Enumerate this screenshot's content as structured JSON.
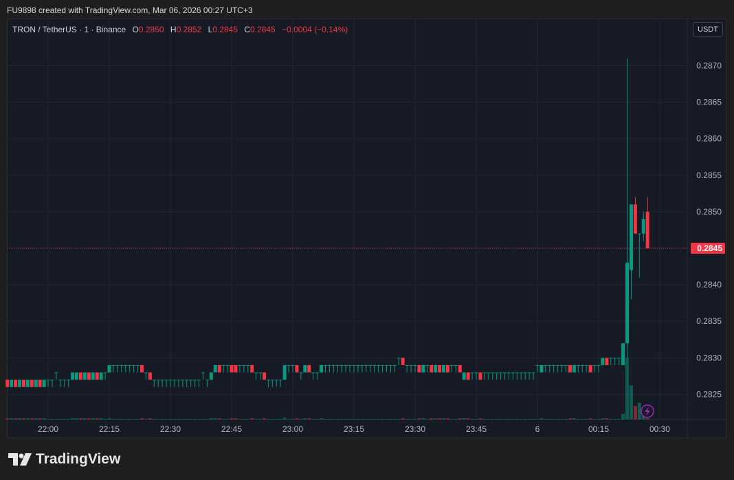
{
  "header": {
    "title": "FU9898 created with TradingView.com, Mar 06, 2026 00:27 UTC+3"
  },
  "legend": {
    "symbol": "TRON / TetherUS · 1 · Binance",
    "o_label": "O",
    "o": "0.2850",
    "h_label": "H",
    "h": "0.2852",
    "l_label": "L",
    "l": "0.2845",
    "c_label": "C",
    "c": "0.2845",
    "change": "−0.0004 (−0.14%)"
  },
  "currency_button": "USDT",
  "brand": "TradingView",
  "colors": {
    "up": "#089981",
    "down": "#f23645",
    "background": "#161a25",
    "grid": "#232632",
    "accent": "#9c27b0"
  },
  "chart_data": {
    "type": "candlestick",
    "interval": "1 minute",
    "start_time": "21:50",
    "ylim": [
      0.2821,
      0.2875
    ],
    "price_ticks": [
      "0.2825",
      "0.2830",
      "0.2835",
      "0.2840",
      "0.2845",
      "0.2850",
      "0.2855",
      "0.2860",
      "0.2865",
      "0.2870"
    ],
    "last_price": "0.2845",
    "time_ticks": [
      {
        "label": "22:00",
        "time": "22:00"
      },
      {
        "label": "22:15",
        "time": "22:15"
      },
      {
        "label": "22:30",
        "time": "22:30"
      },
      {
        "label": "22:45",
        "time": "22:45"
      },
      {
        "label": "23:00",
        "time": "23:00"
      },
      {
        "label": "23:15",
        "time": "23:15"
      },
      {
        "label": "23:30",
        "time": "23:30"
      },
      {
        "label": "23:45",
        "time": "23:45"
      },
      {
        "label": "6",
        "time": "00:00"
      },
      {
        "label": "00:15",
        "time": "00:15"
      },
      {
        "label": "00:30",
        "time": "00:30"
      }
    ],
    "grid": true,
    "candles_ohlcv": [
      [
        0.2827,
        0.2827,
        0.2826,
        0.2826,
        2
      ],
      [
        0.2826,
        0.2827,
        0.2826,
        0.2827,
        2
      ],
      [
        0.2827,
        0.2827,
        0.2826,
        0.2826,
        2
      ],
      [
        0.2826,
        0.2827,
        0.2826,
        0.2827,
        2
      ],
      [
        0.2827,
        0.2827,
        0.2826,
        0.2826,
        2
      ],
      [
        0.2826,
        0.2827,
        0.2826,
        0.2827,
        2
      ],
      [
        0.2827,
        0.2827,
        0.2826,
        0.2826,
        2
      ],
      [
        0.2826,
        0.2827,
        0.2826,
        0.2827,
        2
      ],
      [
        0.2827,
        0.2827,
        0.2826,
        0.2826,
        2
      ],
      [
        0.2826,
        0.2827,
        0.2826,
        0.2827,
        2
      ],
      [
        0.2827,
        0.2827,
        0.2826,
        0.2827,
        1
      ],
      [
        0.2827,
        0.2827,
        0.2826,
        0.2827,
        1
      ],
      [
        0.2828,
        0.2828,
        0.2827,
        0.2828,
        1
      ],
      [
        0.2827,
        0.2827,
        0.2826,
        0.2827,
        1
      ],
      [
        0.2827,
        0.2827,
        0.2826,
        0.2827,
        1
      ],
      [
        0.2827,
        0.2827,
        0.2826,
        0.2827,
        1
      ],
      [
        0.2827,
        0.2828,
        0.2827,
        0.2828,
        2
      ],
      [
        0.2827,
        0.2828,
        0.2827,
        0.2828,
        2
      ],
      [
        0.2828,
        0.2828,
        0.2827,
        0.2827,
        2
      ],
      [
        0.2827,
        0.2828,
        0.2827,
        0.2828,
        2
      ],
      [
        0.2828,
        0.2828,
        0.2827,
        0.2827,
        2
      ],
      [
        0.2827,
        0.2828,
        0.2827,
        0.2828,
        2
      ],
      [
        0.2828,
        0.2828,
        0.2827,
        0.2827,
        2
      ],
      [
        0.2827,
        0.2828,
        0.2827,
        0.2828,
        2
      ],
      [
        0.2828,
        0.2828,
        0.2827,
        0.2828,
        1
      ],
      [
        0.2828,
        0.2829,
        0.2828,
        0.2829,
        2
      ],
      [
        0.2829,
        0.2829,
        0.2828,
        0.2829,
        1
      ],
      [
        0.2829,
        0.2829,
        0.2828,
        0.2829,
        1
      ],
      [
        0.2829,
        0.2829,
        0.2828,
        0.2829,
        1
      ],
      [
        0.2829,
        0.2829,
        0.2828,
        0.2829,
        1
      ],
      [
        0.2829,
        0.2829,
        0.2828,
        0.2829,
        1
      ],
      [
        0.2829,
        0.2829,
        0.2828,
        0.2829,
        1
      ],
      [
        0.2829,
        0.2829,
        0.2828,
        0.2829,
        1
      ],
      [
        0.2829,
        0.2829,
        0.2828,
        0.2828,
        2
      ],
      [
        0.2828,
        0.2828,
        0.2827,
        0.2828,
        1
      ],
      [
        0.2828,
        0.2828,
        0.2827,
        0.2827,
        2
      ],
      [
        0.2827,
        0.2827,
        0.2826,
        0.2827,
        1
      ],
      [
        0.2827,
        0.2827,
        0.2826,
        0.2827,
        1
      ],
      [
        0.2827,
        0.2827,
        0.2826,
        0.2827,
        1
      ],
      [
        0.2827,
        0.2827,
        0.2826,
        0.2827,
        1
      ],
      [
        0.2827,
        0.2827,
        0.2826,
        0.2827,
        1
      ],
      [
        0.2827,
        0.2827,
        0.2826,
        0.2827,
        1
      ],
      [
        0.2827,
        0.2827,
        0.2826,
        0.2827,
        1
      ],
      [
        0.2827,
        0.2827,
        0.2826,
        0.2827,
        1
      ],
      [
        0.2827,
        0.2827,
        0.2826,
        0.2827,
        1
      ],
      [
        0.2827,
        0.2827,
        0.2826,
        0.2827,
        1
      ],
      [
        0.2827,
        0.2827,
        0.2826,
        0.2827,
        1
      ],
      [
        0.2827,
        0.2827,
        0.2826,
        0.2827,
        1
      ],
      [
        0.2828,
        0.2828,
        0.2827,
        0.2828,
        1
      ],
      [
        0.2827,
        0.2827,
        0.2826,
        0.2827,
        1
      ],
      [
        0.2827,
        0.2828,
        0.2827,
        0.2828,
        2
      ],
      [
        0.2828,
        0.2829,
        0.2828,
        0.2829,
        2
      ],
      [
        0.2829,
        0.2829,
        0.2828,
        0.2828,
        2
      ],
      [
        0.2829,
        0.2829,
        0.2828,
        0.2829,
        1
      ],
      [
        0.2829,
        0.2829,
        0.2828,
        0.2829,
        1
      ],
      [
        0.2829,
        0.2829,
        0.2828,
        0.2828,
        2
      ],
      [
        0.2829,
        0.2829,
        0.2828,
        0.2828,
        2
      ],
      [
        0.2829,
        0.2829,
        0.2828,
        0.2829,
        1
      ],
      [
        0.2829,
        0.2829,
        0.2828,
        0.2829,
        1
      ],
      [
        0.2829,
        0.2829,
        0.2828,
        0.2829,
        1
      ],
      [
        0.2829,
        0.2829,
        0.2828,
        0.2828,
        2
      ],
      [
        0.2828,
        0.2828,
        0.2827,
        0.2828,
        1
      ],
      [
        0.2828,
        0.2828,
        0.2827,
        0.2828,
        1
      ],
      [
        0.2828,
        0.2828,
        0.2827,
        0.2827,
        2
      ],
      [
        0.2827,
        0.2827,
        0.2826,
        0.2827,
        1
      ],
      [
        0.2827,
        0.2827,
        0.2826,
        0.2827,
        1
      ],
      [
        0.2827,
        0.2827,
        0.2826,
        0.2827,
        1
      ],
      [
        0.2827,
        0.2827,
        0.2826,
        0.2827,
        1
      ],
      [
        0.2827,
        0.2829,
        0.2827,
        0.2829,
        3
      ],
      [
        0.2829,
        0.2829,
        0.2828,
        0.2829,
        1
      ],
      [
        0.2829,
        0.2829,
        0.2828,
        0.2829,
        1
      ],
      [
        0.2829,
        0.2829,
        0.2828,
        0.2828,
        2
      ],
      [
        0.2828,
        0.2828,
        0.2827,
        0.2828,
        1
      ],
      [
        0.2828,
        0.2829,
        0.2828,
        0.2829,
        2
      ],
      [
        0.2829,
        0.2829,
        0.2828,
        0.2828,
        2
      ],
      [
        0.2828,
        0.2828,
        0.2827,
        0.2828,
        1
      ],
      [
        0.2828,
        0.2828,
        0.2827,
        0.2828,
        1
      ],
      [
        0.2828,
        0.2829,
        0.2828,
        0.2829,
        2
      ],
      [
        0.2829,
        0.2829,
        0.2828,
        0.2829,
        1
      ],
      [
        0.2829,
        0.2829,
        0.2828,
        0.2829,
        1
      ],
      [
        0.2829,
        0.2829,
        0.2828,
        0.2829,
        1
      ],
      [
        0.2829,
        0.2829,
        0.2828,
        0.2829,
        1
      ],
      [
        0.2829,
        0.2829,
        0.2828,
        0.2829,
        1
      ],
      [
        0.2829,
        0.2829,
        0.2828,
        0.2829,
        1
      ],
      [
        0.2829,
        0.2829,
        0.2828,
        0.2829,
        1
      ],
      [
        0.2829,
        0.2829,
        0.2828,
        0.2829,
        1
      ],
      [
        0.2829,
        0.2829,
        0.2828,
        0.2829,
        1
      ],
      [
        0.2829,
        0.2829,
        0.2828,
        0.2829,
        1
      ],
      [
        0.2829,
        0.2829,
        0.2828,
        0.2829,
        1
      ],
      [
        0.2829,
        0.2829,
        0.2828,
        0.2829,
        1
      ],
      [
        0.2829,
        0.2829,
        0.2828,
        0.2829,
        1
      ],
      [
        0.2829,
        0.2829,
        0.2828,
        0.2829,
        1
      ],
      [
        0.2829,
        0.2829,
        0.2828,
        0.2829,
        1
      ],
      [
        0.2829,
        0.2829,
        0.2828,
        0.2829,
        1
      ],
      [
        0.2829,
        0.2829,
        0.2828,
        0.2829,
        1
      ],
      [
        0.2829,
        0.2829,
        0.2828,
        0.2829,
        1
      ],
      [
        0.283,
        0.283,
        0.2829,
        0.283,
        1
      ],
      [
        0.283,
        0.283,
        0.2829,
        0.2829,
        2
      ],
      [
        0.2829,
        0.2829,
        0.2828,
        0.2829,
        1
      ],
      [
        0.2829,
        0.2829,
        0.2828,
        0.2829,
        1
      ],
      [
        0.2829,
        0.2829,
        0.2828,
        0.2829,
        1
      ],
      [
        0.2829,
        0.2829,
        0.2828,
        0.2828,
        2
      ],
      [
        0.2828,
        0.2829,
        0.2828,
        0.2829,
        2
      ],
      [
        0.2829,
        0.2829,
        0.2828,
        0.2829,
        1
      ],
      [
        0.2829,
        0.2829,
        0.2828,
        0.2828,
        2
      ],
      [
        0.2828,
        0.2829,
        0.2828,
        0.2829,
        2
      ],
      [
        0.2829,
        0.2829,
        0.2828,
        0.2828,
        2
      ],
      [
        0.2828,
        0.2829,
        0.2828,
        0.2829,
        2
      ],
      [
        0.2829,
        0.2829,
        0.2828,
        0.2828,
        2
      ],
      [
        0.2829,
        0.2829,
        0.2828,
        0.2829,
        1
      ],
      [
        0.2829,
        0.2829,
        0.2828,
        0.2829,
        1
      ],
      [
        0.2829,
        0.2829,
        0.2828,
        0.2828,
        2
      ],
      [
        0.2827,
        0.2828,
        0.2827,
        0.2828,
        2
      ],
      [
        0.2828,
        0.2828,
        0.2827,
        0.2827,
        2
      ],
      [
        0.2828,
        0.2828,
        0.2827,
        0.2828,
        1
      ],
      [
        0.2828,
        0.2828,
        0.2827,
        0.2828,
        1
      ],
      [
        0.2828,
        0.2828,
        0.2827,
        0.2827,
        2
      ],
      [
        0.2828,
        0.2828,
        0.2827,
        0.2828,
        1
      ],
      [
        0.2828,
        0.2828,
        0.2827,
        0.2828,
        1
      ],
      [
        0.2828,
        0.2828,
        0.2827,
        0.2828,
        1
      ],
      [
        0.2828,
        0.2828,
        0.2827,
        0.2828,
        1
      ],
      [
        0.2828,
        0.2828,
        0.2827,
        0.2828,
        1
      ],
      [
        0.2828,
        0.2828,
        0.2827,
        0.2828,
        1
      ],
      [
        0.2828,
        0.2828,
        0.2827,
        0.2828,
        1
      ],
      [
        0.2828,
        0.2828,
        0.2827,
        0.2828,
        1
      ],
      [
        0.2828,
        0.2828,
        0.2827,
        0.2828,
        1
      ],
      [
        0.2828,
        0.2828,
        0.2827,
        0.2828,
        1
      ],
      [
        0.2828,
        0.2828,
        0.2827,
        0.2828,
        1
      ],
      [
        0.2828,
        0.2828,
        0.2827,
        0.2828,
        1
      ],
      [
        0.2828,
        0.2828,
        0.2827,
        0.2828,
        1
      ],
      [
        0.2829,
        0.2829,
        0.2828,
        0.2829,
        1
      ],
      [
        0.2828,
        0.2829,
        0.2828,
        0.2829,
        2
      ],
      [
        0.2829,
        0.2829,
        0.2828,
        0.2829,
        1
      ],
      [
        0.2829,
        0.2829,
        0.2828,
        0.2829,
        1
      ],
      [
        0.2829,
        0.2829,
        0.2828,
        0.2829,
        1
      ],
      [
        0.2829,
        0.2829,
        0.2828,
        0.2829,
        1
      ],
      [
        0.2829,
        0.2829,
        0.2828,
        0.2829,
        1
      ],
      [
        0.2829,
        0.2829,
        0.2828,
        0.2829,
        1
      ],
      [
        0.2829,
        0.2829,
        0.2828,
        0.2828,
        2
      ],
      [
        0.2828,
        0.2829,
        0.2828,
        0.2829,
        2
      ],
      [
        0.2829,
        0.2829,
        0.2828,
        0.2829,
        1
      ],
      [
        0.2829,
        0.2829,
        0.2828,
        0.2829,
        1
      ],
      [
        0.2829,
        0.2829,
        0.2828,
        0.2829,
        1
      ],
      [
        0.2829,
        0.2829,
        0.2828,
        0.2828,
        2
      ],
      [
        0.2829,
        0.2829,
        0.2828,
        0.2829,
        1
      ],
      [
        0.2829,
        0.2829,
        0.2828,
        0.2829,
        1
      ],
      [
        0.2829,
        0.283,
        0.2829,
        0.283,
        2
      ],
      [
        0.283,
        0.283,
        0.2829,
        0.2829,
        2
      ],
      [
        0.283,
        0.283,
        0.2829,
        0.283,
        1
      ],
      [
        0.283,
        0.283,
        0.2829,
        0.283,
        1
      ],
      [
        0.283,
        0.283,
        0.2829,
        0.283,
        1
      ],
      [
        0.2829,
        0.2832,
        0.2829,
        0.2832,
        9
      ],
      [
        0.2832,
        0.2871,
        0.283,
        0.2843,
        100
      ],
      [
        0.2842,
        0.2851,
        0.2838,
        0.2851,
        55
      ],
      [
        0.2851,
        0.2852,
        0.2847,
        0.2847,
        22
      ],
      [
        0.2847,
        0.2847,
        0.2841,
        0.2847,
        27
      ],
      [
        0.2847,
        0.285,
        0.2846,
        0.2849,
        12
      ],
      [
        0.285,
        0.2852,
        0.2845,
        0.2845,
        2
      ]
    ]
  }
}
